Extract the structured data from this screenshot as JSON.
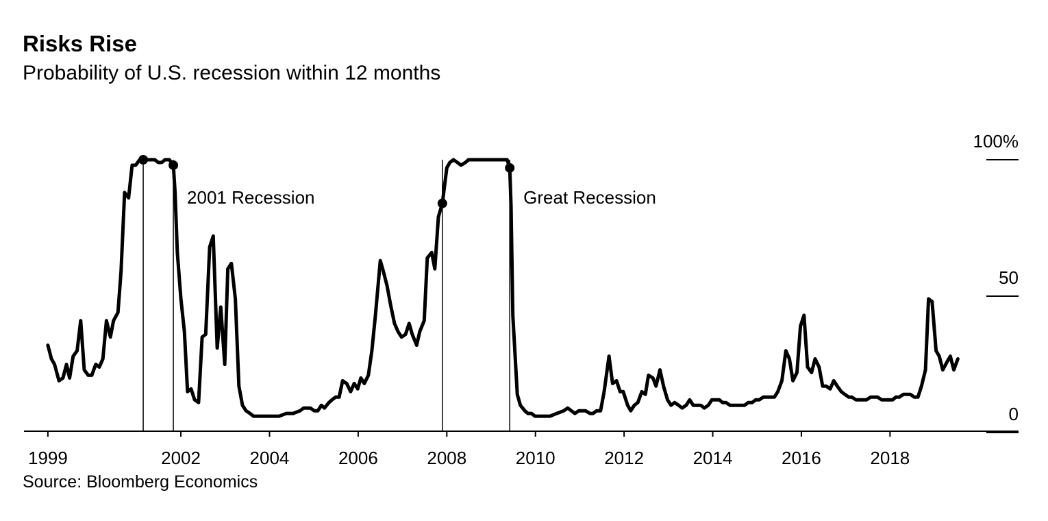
{
  "chart_data": {
    "type": "line",
    "title": "Risks Rise",
    "subtitle": "Probability of U.S. recession within 12 months",
    "source": "Source: Bloomberg Economics",
    "color": "#000000",
    "xlim": [
      1998.46,
      2020.9
    ],
    "xticks": [
      1999,
      2002,
      2004,
      2006,
      2008,
      2010,
      2012,
      2014,
      2016,
      2018
    ],
    "ylim": [
      0,
      100
    ],
    "yticks": [
      0,
      50,
      {
        "value": 100,
        "label": "100%"
      }
    ],
    "recessions": [
      {
        "label": "2001 Recession",
        "start": 2001.15,
        "end": 2001.83
      },
      {
        "label": "Great Recession",
        "start": 2007.9,
        "end": 2009.42
      }
    ],
    "x": [
      1999.0,
      1999.08,
      1999.15,
      1999.25,
      1999.34,
      1999.42,
      1999.49,
      1999.57,
      1999.66,
      1999.74,
      1999.82,
      1999.91,
      1999.99,
      2000.08,
      2000.16,
      2000.24,
      2000.32,
      2000.41,
      2000.48,
      2000.58,
      2000.65,
      2000.73,
      2000.82,
      2000.9,
      2000.98,
      2001.07,
      2001.15,
      2001.24,
      2001.32,
      2001.41,
      2001.49,
      2001.57,
      2001.64,
      2001.74,
      2001.83,
      2001.87,
      2001.92,
      2002.0,
      2002.08,
      2002.15,
      2002.23,
      2002.31,
      2002.4,
      2002.48,
      2002.56,
      2002.65,
      2002.73,
      2002.82,
      2002.9,
      2002.99,
      2003.06,
      2003.14,
      2003.23,
      2003.31,
      2003.39,
      2003.47,
      2003.56,
      2003.64,
      2003.73,
      2003.88,
      2003.96,
      2004.05,
      2004.13,
      2004.22,
      2004.38,
      2004.53,
      2004.69,
      2004.77,
      2004.92,
      2005.01,
      2005.09,
      2005.17,
      2005.24,
      2005.34,
      2005.41,
      2005.49,
      2005.57,
      2005.65,
      2005.74,
      2005.83,
      2005.91,
      2005.99,
      2006.06,
      2006.14,
      2006.23,
      2006.31,
      2006.39,
      2006.5,
      2006.57,
      2006.65,
      2006.73,
      2006.82,
      2006.9,
      2006.98,
      2007.07,
      2007.15,
      2007.22,
      2007.32,
      2007.39,
      2007.49,
      2007.56,
      2007.66,
      2007.73,
      2007.81,
      2007.9,
      2008.0,
      2008.07,
      2008.15,
      2008.24,
      2008.32,
      2008.42,
      2008.49,
      2008.6,
      2008.75,
      2008.9,
      2009.05,
      2009.2,
      2009.36,
      2009.42,
      2009.45,
      2009.49,
      2009.59,
      2009.66,
      2009.76,
      2009.83,
      2009.91,
      2009.99,
      2010.08,
      2010.16,
      2010.24,
      2010.33,
      2010.48,
      2010.64,
      2010.73,
      2010.81,
      2010.89,
      2010.98,
      2011.13,
      2011.23,
      2011.3,
      2011.38,
      2011.47,
      2011.55,
      2011.66,
      2011.74,
      2011.83,
      2011.91,
      2011.98,
      2012.08,
      2012.15,
      2012.23,
      2012.31,
      2012.4,
      2012.48,
      2012.55,
      2012.65,
      2012.72,
      2012.81,
      2012.89,
      2012.98,
      2013.06,
      2013.14,
      2013.23,
      2013.31,
      2013.4,
      2013.48,
      2013.56,
      2013.65,
      2013.73,
      2013.81,
      2013.9,
      2013.98,
      2014.05,
      2014.15,
      2014.22,
      2014.3,
      2014.39,
      2014.47,
      2014.55,
      2014.64,
      2014.72,
      2014.8,
      2014.89,
      2014.97,
      2015.05,
      2015.14,
      2015.22,
      2015.3,
      2015.39,
      2015.47,
      2015.56,
      2015.65,
      2015.73,
      2015.81,
      2015.9,
      2015.98,
      2016.06,
      2016.14,
      2016.23,
      2016.31,
      2016.4,
      2016.48,
      2016.56,
      2016.65,
      2016.73,
      2016.81,
      2016.9,
      2016.98,
      2017.07,
      2017.14,
      2017.23,
      2017.32,
      2017.39,
      2017.47,
      2017.56,
      2017.64,
      2017.72,
      2017.81,
      2017.89,
      2017.97,
      2018.06,
      2018.13,
      2018.21,
      2018.3,
      2018.38,
      2018.46,
      2018.55,
      2018.63,
      2018.71,
      2018.8,
      2018.87,
      2018.95,
      2019.04,
      2019.11,
      2019.19,
      2019.29,
      2019.36,
      2019.44,
      2019.53
    ],
    "values": [
      32,
      27,
      25,
      19,
      20,
      25,
      20,
      28,
      30,
      41,
      23,
      21,
      21,
      25,
      24,
      27,
      41,
      35,
      41,
      44,
      59,
      88,
      86,
      98,
      98,
      100,
      100,
      100,
      100,
      100,
      99,
      99,
      100,
      100,
      98,
      88,
      66,
      49,
      37,
      15,
      16,
      12,
      11,
      35,
      36,
      68,
      72,
      31,
      46,
      25,
      60,
      62,
      49,
      17,
      10,
      8,
      7,
      6,
      6,
      6,
      6,
      6,
      6,
      6,
      7,
      7,
      8,
      9,
      9,
      8,
      8,
      10,
      9,
      11,
      12,
      13,
      13,
      19,
      18,
      15,
      18,
      16,
      20,
      18,
      21,
      30,
      43,
      63,
      59,
      54,
      47,
      40,
      37,
      35,
      36,
      40,
      36,
      32,
      37,
      41,
      64,
      66,
      60,
      79,
      84,
      97,
      99,
      100,
      99,
      98,
      99,
      100,
      100,
      100,
      100,
      100,
      100,
      100,
      97,
      83,
      43,
      14,
      10,
      8,
      7,
      7,
      6,
      6,
      6,
      6,
      6,
      7,
      8,
      9,
      8,
      7,
      8,
      8,
      7,
      7,
      8,
      8,
      15,
      28,
      18,
      19,
      15,
      15,
      10,
      8,
      10,
      11,
      15,
      14,
      21,
      20,
      17,
      23,
      17,
      12,
      10,
      11,
      10,
      9,
      10,
      12,
      10,
      10,
      10,
      9,
      10,
      12,
      12,
      12,
      11,
      11,
      10,
      10,
      10,
      10,
      10,
      11,
      11,
      12,
      12,
      13,
      13,
      13,
      13,
      15,
      19,
      30,
      27,
      19,
      22,
      39,
      43,
      24,
      22,
      27,
      24,
      17,
      17,
      16,
      19,
      17,
      15,
      14,
      13,
      13,
      12,
      12,
      12,
      12,
      13,
      13,
      13,
      12,
      12,
      12,
      12,
      13,
      13,
      14,
      14,
      14,
      13,
      13,
      17,
      23,
      49,
      48,
      30,
      28,
      23,
      26,
      28,
      23,
      27
    ]
  }
}
